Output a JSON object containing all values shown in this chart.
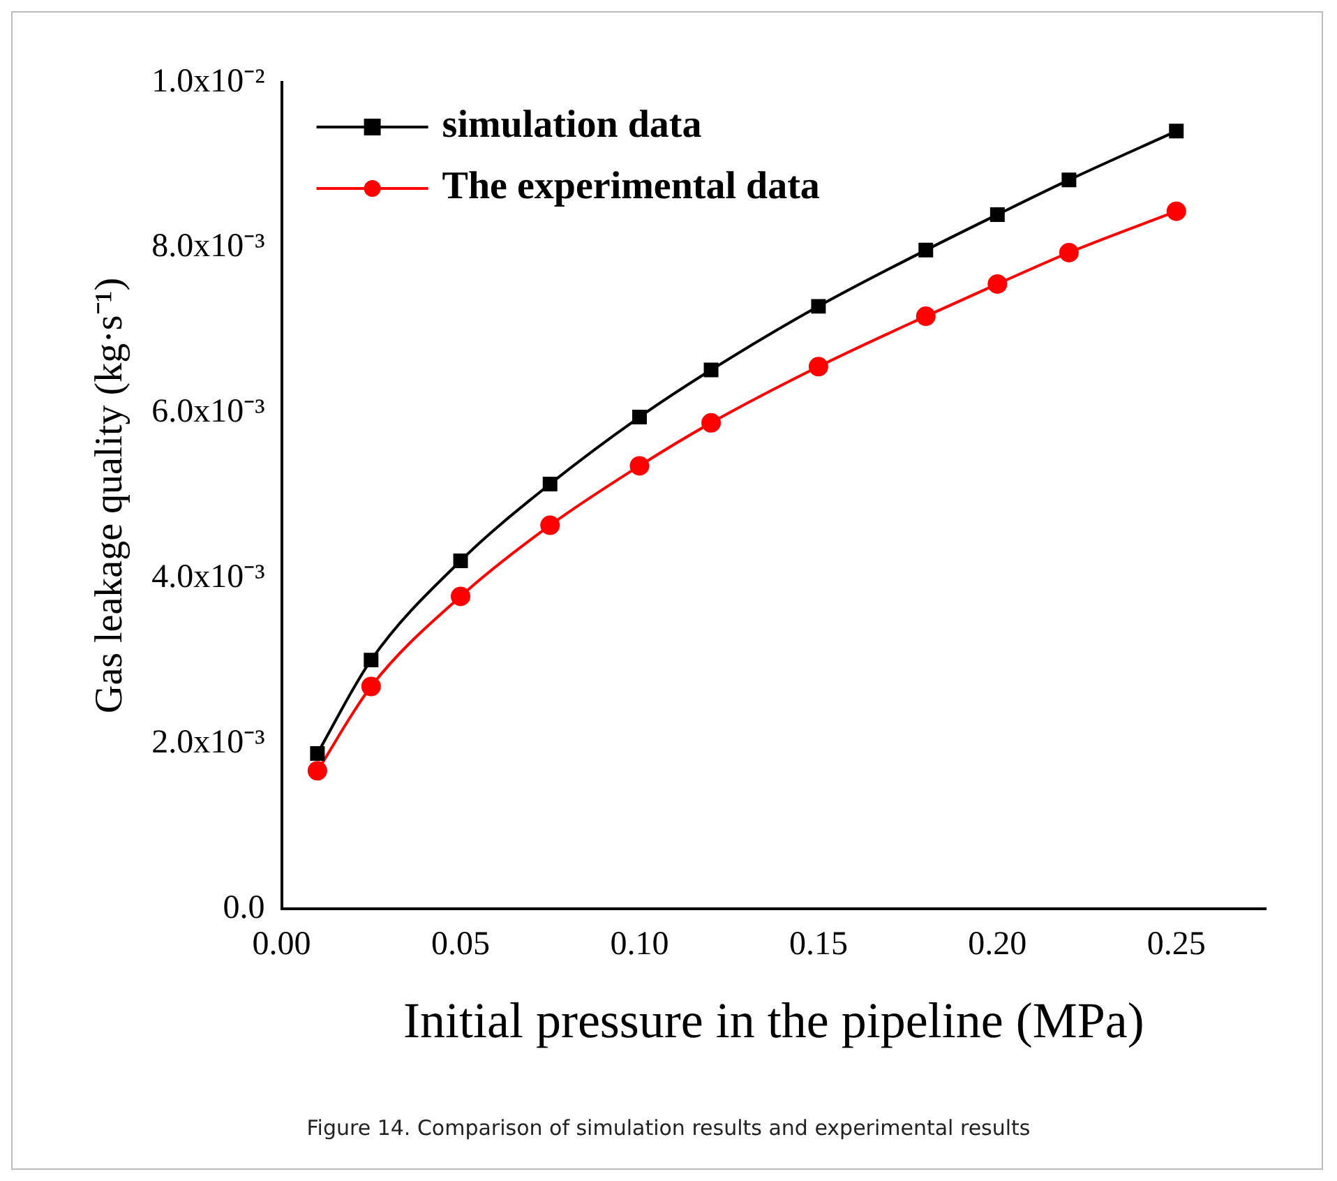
{
  "chart_data": {
    "type": "line",
    "xlabel": "Initial pressure in the pipeline (MPa)",
    "ylabel": "Gas leakage quality (kg·s⁻¹)",
    "x": [
      0.01,
      0.025,
      0.05,
      0.075,
      0.1,
      0.12,
      0.15,
      0.18,
      0.2,
      0.22,
      0.25
    ],
    "series": [
      {
        "name": "simulation data",
        "color": "#000000",
        "marker": "square",
        "values": [
          0.00188,
          0.00301,
          0.00421,
          0.00514,
          0.00595,
          0.00652,
          0.00729,
          0.00797,
          0.0084,
          0.00882,
          0.00941
        ]
      },
      {
        "name": "The experimental data",
        "color": "#ff0000",
        "marker": "circle",
        "values": [
          0.00167,
          0.00269,
          0.00378,
          0.00464,
          0.00536,
          0.00588,
          0.00656,
          0.00717,
          0.00756,
          0.00794,
          0.00844
        ]
      }
    ],
    "xlim": [
      0,
      0.275
    ],
    "xticks": [
      {
        "value": 0,
        "label": "0.00"
      },
      {
        "value": 0.05,
        "label": "0.05"
      },
      {
        "value": 0.1,
        "label": "0.10"
      },
      {
        "value": 0.15,
        "label": "0.15"
      },
      {
        "value": 0.2,
        "label": "0.20"
      },
      {
        "value": 0.25,
        "label": "0.25"
      }
    ],
    "ylim": [
      0,
      0.01
    ],
    "yticks": [
      {
        "value": 0,
        "label": "0.0"
      },
      {
        "value": 0.002,
        "label": "2.0x10⁻³"
      },
      {
        "value": 0.004,
        "label": "4.0x10⁻³"
      },
      {
        "value": 0.006,
        "label": "6.0x10⁻³"
      },
      {
        "value": 0.008,
        "label": "8.0x10⁻³"
      },
      {
        "value": 0.01,
        "label": "1.0x10⁻²"
      }
    ],
    "grid": false,
    "legend": "top left",
    "line_style": "solid",
    "annotations": [
      "Figure 14. Comparison of simulation results and experimental results"
    ]
  }
}
